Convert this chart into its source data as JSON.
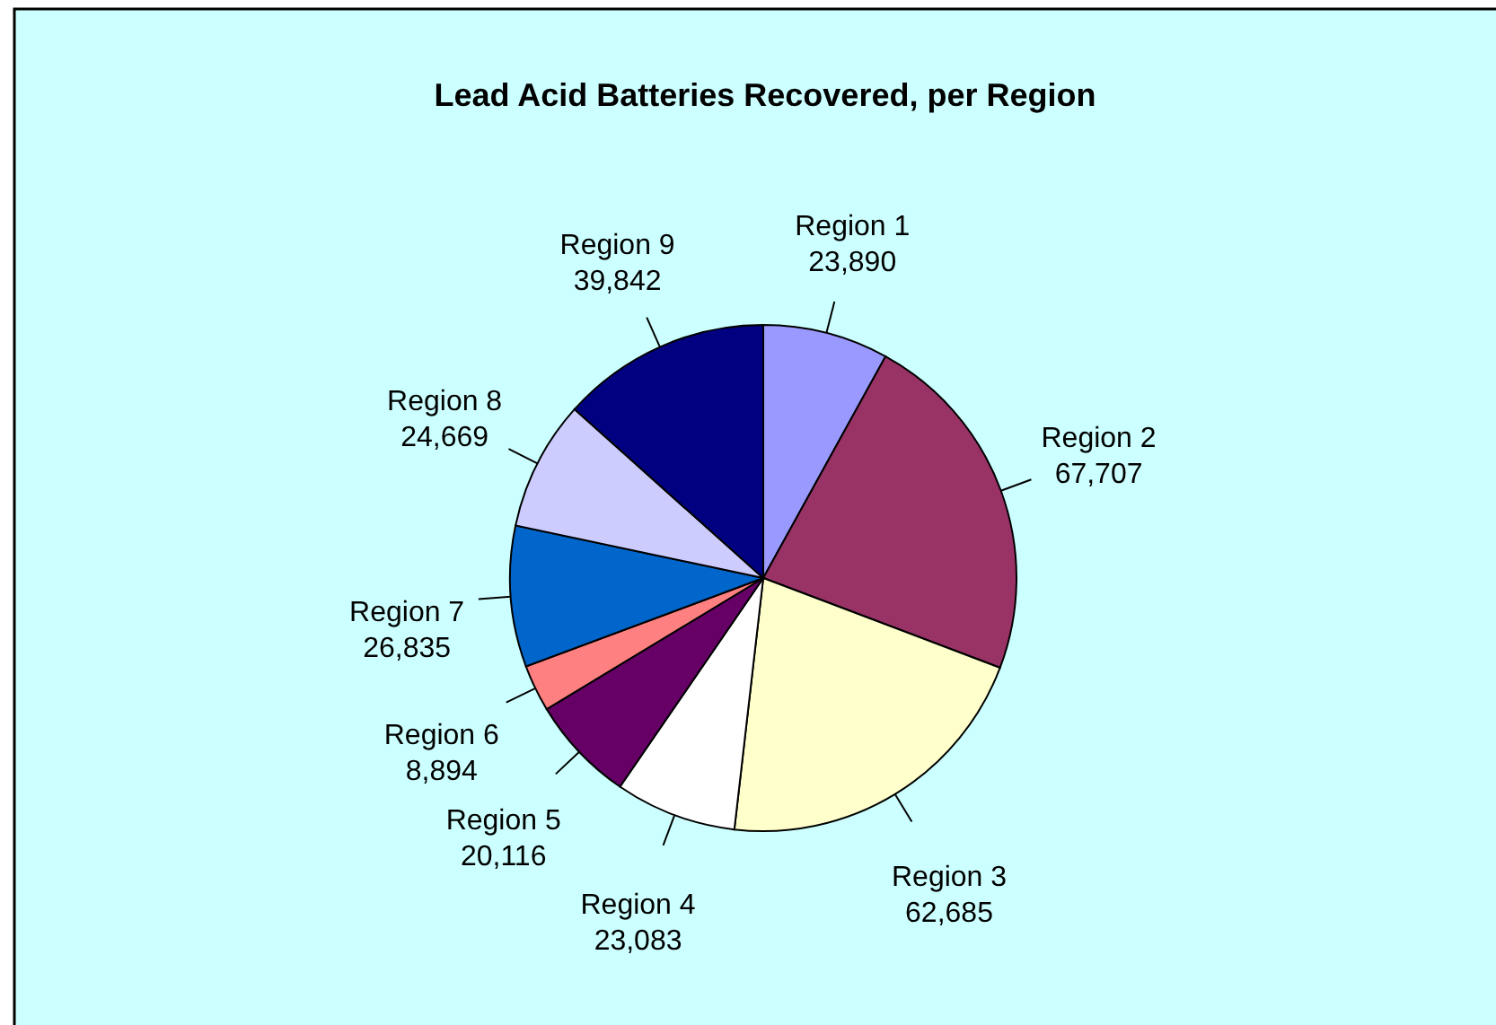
{
  "chart_data": {
    "type": "pie",
    "title": "Lead Acid Batteries Recovered, per Region",
    "categories": [
      "Region 1",
      "Region 2",
      "Region 3",
      "Region 4",
      "Region 5",
      "Region 6",
      "Region 7",
      "Region 8",
      "Region 9"
    ],
    "values": [
      23890,
      67707,
      62685,
      23083,
      20116,
      8894,
      26835,
      24669,
      39842
    ],
    "colors": [
      "#9999ff",
      "#993366",
      "#ffffcc",
      "#ffffff",
      "#660066",
      "#ff8080",
      "#0066cc",
      "#ccccff",
      "#000080"
    ],
    "value_labels": [
      "23,890",
      "67,707",
      "62,685",
      "23,083",
      "20,116",
      "8,894",
      "26,835",
      "24,669",
      "39,842"
    ],
    "legend": false
  }
}
